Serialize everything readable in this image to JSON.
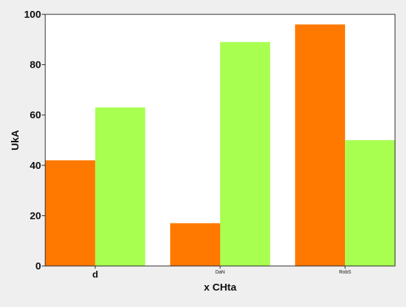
{
  "chart_data": {
    "type": "bar",
    "title": "",
    "xlabel": "x CHta",
    "ylabel": "UkA",
    "categories": [
      "d",
      "DaN",
      "RobS"
    ],
    "series": [
      {
        "values": [
          42,
          17,
          96
        ],
        "color": "#ff7800"
      },
      {
        "values": [
          63,
          89,
          50
        ],
        "color": "#a8ff50"
      }
    ],
    "ylim": [
      0,
      100
    ],
    "yticks": [
      0,
      20,
      40,
      60,
      80,
      100
    ],
    "grid": false,
    "legend": "none",
    "plot_background": "#ffffff",
    "figure_background": "#efefef"
  }
}
